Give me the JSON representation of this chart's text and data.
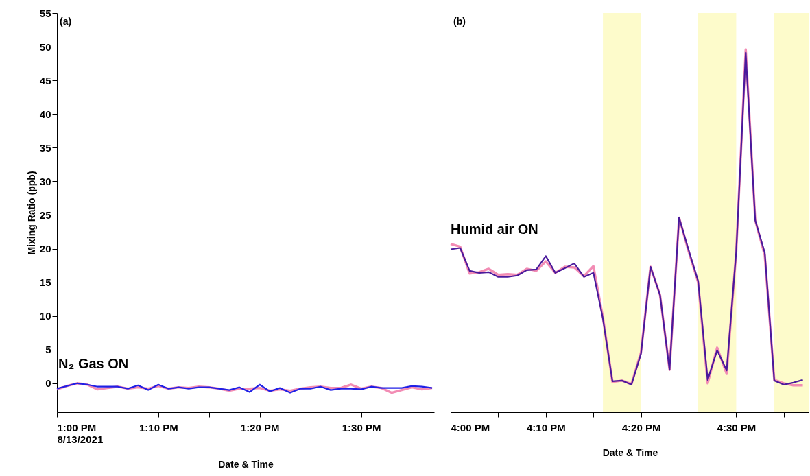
{
  "chart_data": [
    {
      "type": "line",
      "ylabel": "Mixing Ratio (ppb)",
      "xlabel": "Date & Time",
      "annotations": [
        "(a)",
        "N₂ Gas ON"
      ],
      "x": [
        13.0,
        13.016667,
        13.033333,
        13.05,
        13.066667,
        13.083333,
        13.1,
        13.116667,
        13.133333,
        13.15,
        13.166667,
        13.183333,
        13.2,
        13.216667,
        13.233333,
        13.25,
        13.266667,
        13.283333,
        13.3,
        13.316667,
        13.333333,
        13.35,
        13.366667,
        13.383333,
        13.4,
        13.416667,
        13.433333,
        13.45,
        13.466667,
        13.483333,
        13.5,
        13.516667,
        13.533333,
        13.55,
        13.566667,
        13.583333,
        13.6,
        13.616667
      ],
      "series": [
        {
          "color": "#f28cb4",
          "values": [
            -0.9,
            -0.4,
            0.0,
            -0.2,
            -0.9,
            -0.7,
            -0.5,
            -0.8,
            -0.6,
            -0.8,
            -0.4,
            -0.8,
            -0.6,
            -0.7,
            -0.5,
            -0.6,
            -0.8,
            -1.1,
            -0.8,
            -0.8,
            -0.7,
            -1.1,
            -0.9,
            -1.1,
            -0.8,
            -0.6,
            -0.5,
            -0.7,
            -0.7,
            -0.2,
            -0.8,
            -0.5,
            -0.7,
            -1.4,
            -1.0,
            -0.6,
            -0.9,
            -0.7
          ]
        },
        {
          "color": "#2020e6",
          "values": [
            -0.8,
            -0.4,
            0.0,
            -0.2,
            -0.5,
            -0.5,
            -0.5,
            -0.8,
            -0.3,
            -1.0,
            -0.2,
            -0.8,
            -0.6,
            -0.8,
            -0.6,
            -0.6,
            -0.8,
            -1.0,
            -0.6,
            -1.3,
            -0.2,
            -1.2,
            -0.7,
            -1.4,
            -0.8,
            -0.8,
            -0.5,
            -1.0,
            -0.8,
            -0.8,
            -0.9,
            -0.5,
            -0.7,
            -0.7,
            -0.7,
            -0.4,
            -0.5,
            -0.7
          ]
        }
      ],
      "xlim": [
        13.0,
        13.62
      ],
      "xticks": [
        {
          "value": 13.0,
          "label": "1:00 PM\n8/13/2021"
        },
        {
          "value": 13.083333,
          "label": null
        },
        {
          "value": 13.166667,
          "label": "1:10 PM"
        },
        {
          "value": 13.25,
          "label": null
        },
        {
          "value": 13.333333,
          "label": "1:20 PM"
        },
        {
          "value": 13.416667,
          "label": null
        },
        {
          "value": 13.5,
          "label": "1:30 PM"
        },
        {
          "value": 13.583333,
          "label": null
        }
      ],
      "ylim": [
        -4.3,
        55
      ],
      "yticks": [
        0,
        5,
        10,
        15,
        20,
        25,
        30,
        35,
        40,
        45,
        50,
        55
      ],
      "grid": false
    },
    {
      "type": "line",
      "xlabel": "Date & Time",
      "annotations": [
        "(b)",
        "Humid air ON"
      ],
      "x": [
        16.0,
        16.016667,
        16.033333,
        16.05,
        16.066667,
        16.083333,
        16.1,
        16.116667,
        16.133333,
        16.15,
        16.166667,
        16.183333,
        16.2,
        16.216667,
        16.233333,
        16.25,
        16.266667,
        16.283333,
        16.3,
        16.316667,
        16.333333,
        16.35,
        16.366667,
        16.383333,
        16.4,
        16.416667,
        16.433333,
        16.45,
        16.466667,
        16.483333,
        16.5,
        16.516667,
        16.533333,
        16.55,
        16.566667,
        16.583333,
        16.6,
        16.616667
      ],
      "series": [
        {
          "color": "#f28cb4",
          "values": [
            20.7,
            20.3,
            16.3,
            16.5,
            17.0,
            16.1,
            16.2,
            16.1,
            17.0,
            16.7,
            18.1,
            16.4,
            17.3,
            17.2,
            15.9,
            17.4,
            9.8,
            0.2,
            0.4,
            -0.1,
            4.6,
            17.3,
            13.1,
            2.0,
            24.6,
            19.6,
            15.0,
            0.0,
            5.3,
            1.4,
            19.5,
            49.6,
            24.2,
            19.0,
            0.5,
            0.0,
            -0.3,
            -0.3
          ]
        },
        {
          "color": "#4a1a9c",
          "values": [
            19.9,
            20.1,
            16.7,
            16.4,
            16.5,
            15.8,
            15.8,
            16.0,
            16.8,
            16.9,
            18.9,
            16.4,
            17.1,
            17.8,
            15.8,
            16.4,
            9.6,
            0.3,
            0.4,
            -0.2,
            4.4,
            17.3,
            13.1,
            2.0,
            24.6,
            19.8,
            15.2,
            0.5,
            4.9,
            1.9,
            19.5,
            49.1,
            24.2,
            19.4,
            0.4,
            -0.2,
            0.1,
            0.5
          ]
        }
      ],
      "bands": [
        {
          "axis": "x",
          "from": 16.266667,
          "to": 16.333333,
          "color": "#fdfbcb"
        },
        {
          "axis": "x",
          "from": 16.433333,
          "to": 16.5,
          "color": "#fdfbcb"
        },
        {
          "axis": "x",
          "from": 16.566667,
          "to": 16.628,
          "color": "#fdfbcb"
        }
      ],
      "xlim": [
        16.0,
        16.628
      ],
      "xticks": [
        {
          "value": 16.0,
          "label": "4:00 PM"
        },
        {
          "value": 16.083333,
          "label": null
        },
        {
          "value": 16.166667,
          "label": "4:10 PM"
        },
        {
          "value": 16.25,
          "label": null
        },
        {
          "value": 16.333333,
          "label": "4:20 PM"
        },
        {
          "value": 16.416667,
          "label": null
        },
        {
          "value": 16.5,
          "label": "4:30 PM"
        },
        {
          "value": 16.583333,
          "label": null
        }
      ],
      "ylim": [
        -4.3,
        55
      ],
      "yticks": [
        0,
        5,
        10,
        15,
        20,
        25,
        30,
        35,
        40,
        45,
        50,
        55
      ],
      "tick_labels": "x",
      "grid": false
    }
  ]
}
